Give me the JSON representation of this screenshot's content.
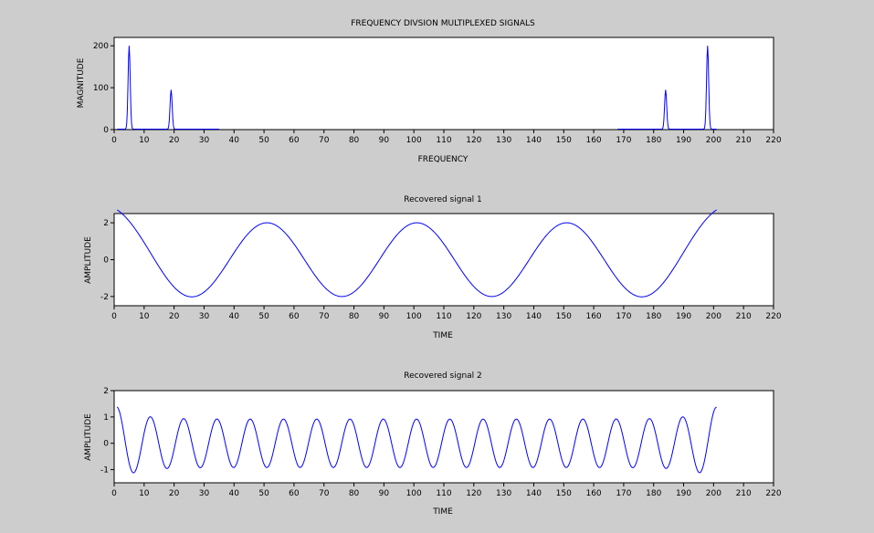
{
  "chart_data": [
    {
      "type": "line",
      "title": "FREQUENCY DIVSION MULTIPLEXED SIGNALS",
      "xlabel": "FREQUENCY",
      "ylabel": "MAGNITUDE",
      "xlim": [
        0,
        220
      ],
      "ylim": [
        0,
        220
      ],
      "xticks": [
        0,
        10,
        20,
        30,
        40,
        50,
        60,
        70,
        80,
        90,
        100,
        110,
        120,
        130,
        140,
        150,
        160,
        170,
        180,
        190,
        200,
        210,
        220
      ],
      "yticks": [
        0,
        100,
        200
      ],
      "grid": false,
      "color": "#0000ff",
      "series": [
        {
          "segments": [
            {
              "x_start": 1,
              "x_end": 35,
              "baseline": 1,
              "peaks": [
                {
                  "x": 5,
                  "y": 200
                },
                {
                  "x": 19,
                  "y": 95
                }
              ]
            },
            {
              "x_start": 168,
              "x_end": 201,
              "baseline": 1,
              "peaks": [
                {
                  "x": 184,
                  "y": 95
                },
                {
                  "x": 198,
                  "y": 200
                }
              ]
            }
          ]
        }
      ]
    },
    {
      "type": "line",
      "title": "Recovered signal 1",
      "xlabel": "TIME",
      "ylabel": "AMPLITUDE",
      "xlim": [
        0,
        220
      ],
      "ylim": [
        -2.5,
        2.5
      ],
      "xticks": [
        0,
        10,
        20,
        30,
        40,
        50,
        60,
        70,
        80,
        90,
        100,
        110,
        120,
        130,
        140,
        150,
        160,
        170,
        180,
        190,
        200,
        210,
        220
      ],
      "yticks": [
        -2,
        0,
        2
      ],
      "grid": false,
      "color": "#0000ff",
      "series": [
        {
          "x_start": 1,
          "x_end": 201,
          "amplitude": 2,
          "period": 50,
          "phase_peak_at": 1,
          "end_boost": 0.35
        }
      ]
    },
    {
      "type": "line",
      "title": "Recovered signal 2",
      "xlabel": "TIME",
      "ylabel": "AMPLITUDE",
      "xlim": [
        0,
        220
      ],
      "ylim": [
        -1.5,
        2
      ],
      "xticks": [
        0,
        10,
        20,
        30,
        40,
        50,
        60,
        70,
        80,
        90,
        100,
        110,
        120,
        130,
        140,
        150,
        160,
        170,
        180,
        190,
        200,
        210,
        220
      ],
      "yticks": [
        -1,
        0,
        1,
        2
      ],
      "grid": false,
      "color": "#0000ff",
      "series": [
        {
          "x_start": 1,
          "x_end": 201,
          "amplitude": 0.92,
          "period": 11.1,
          "phase_peak_at": 1,
          "end_boost": 0.5
        }
      ]
    }
  ]
}
